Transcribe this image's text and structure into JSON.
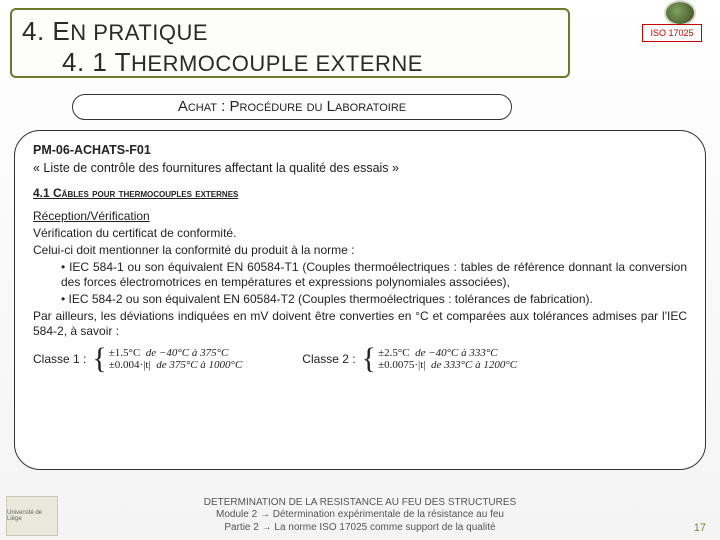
{
  "title": {
    "line1_prefix": "4. E",
    "line1_rest": "N PRATIQUE",
    "line2_prefix": "4. 1 T",
    "line2_rest": "HERMOCOUPLE EXTERNE"
  },
  "iso": "ISO 17025",
  "sub_banner": "Achat : Procédure du Laboratoire",
  "content": {
    "ref": "PM-06-ACHATS-F01",
    "quote": "« Liste de contrôle des fournitures affectant la qualité des essais »",
    "section": "4.1 Câbles pour thermocouples externes",
    "recv_heading": "Réception/Vérification",
    "p1": "Vérification du certificat de conformité.",
    "p2": "Celui-ci doit mentionner la conformité du produit à la norme :",
    "b1": "• IEC 584-1 ou son équivalent EN 60584-T1 (Couples thermoélectriques : tables de référence donnant la conversion des forces électromotrices en températures et expressions polynomiales associées),",
    "b2": "• IEC 584-2 ou son équivalent EN 60584-T2 (Couples thermoélectriques : tolérances de fabrication).",
    "p3": "Par ailleurs, les déviations indiquées en mV doivent être converties en °C et comparées aux tolérances admises par l'IEC 584-2, à savoir :",
    "class1_label": "Classe 1 :",
    "class2_label": "Classe 2 :",
    "class1": {
      "r1a": "±1.5°C",
      "r1b": "de −40°C à 375°C",
      "r2a": "±0.004·|t|",
      "r2b": "de 375°C à 1000°C"
    },
    "class2": {
      "r1a": "±2.5°C",
      "r1b": "de −40°C à 333°C",
      "r2a": "±0.0075·|t|",
      "r2b": "de 333°C à 1200°C"
    }
  },
  "footer": {
    "l1": "DETERMINATION DE LA RESISTANCE AU FEU DES STRUCTURES",
    "l2": "Module 2 → Détermination expérimentale de la résistance au feu",
    "l3": "Partie 2 → La norme ISO 17025 comme support de la qualité"
  },
  "pagenum": "17",
  "uni": "Université de Liège"
}
